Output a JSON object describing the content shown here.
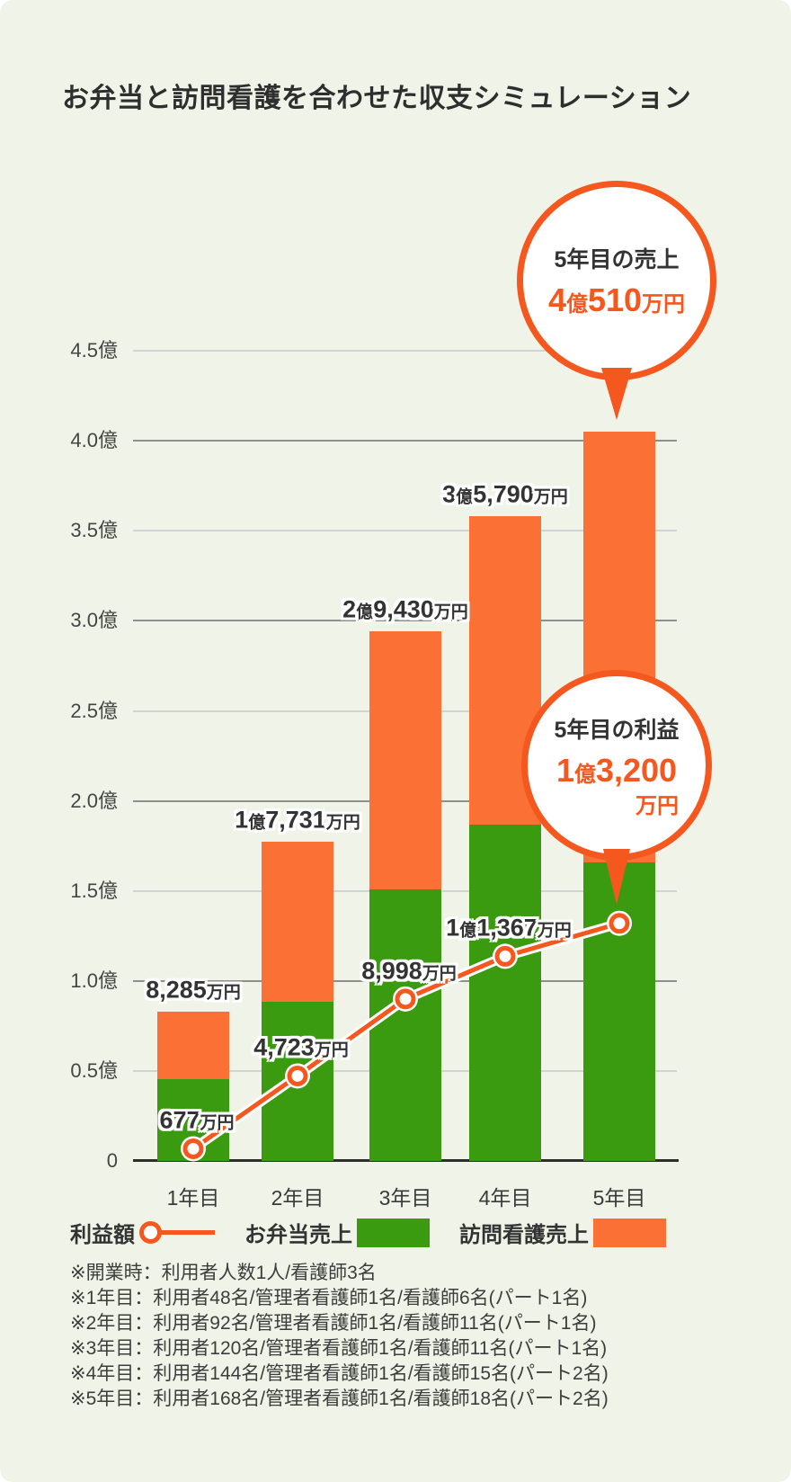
{
  "title": "お弁当と訪問看護を合わせた収支シミュレーション",
  "colors": {
    "background": "#f0f4e8",
    "bento_green": "#3a9b10",
    "nursing_orange": "#fb7034",
    "accent_orange": "#f4581f",
    "text_dark": "#333333"
  },
  "callouts": {
    "sales": {
      "label": "5年目の売上",
      "value": "4億510万円"
    },
    "profit": {
      "label": "5年目の利益",
      "value_line1": "1億3,200",
      "value_line2": "万円"
    }
  },
  "chart_data": {
    "type": "bar",
    "subtype": "stacked-bars-with-line",
    "title": "お弁当と訪問看護を合わせた収支シミュレーション",
    "categories": [
      "1年目",
      "2年目",
      "3年目",
      "4年目",
      "5年目"
    ],
    "series": [
      {
        "name": "お弁当売上",
        "type": "bar",
        "color": "#3a9b10",
        "values_oku": [
          0.455,
          0.885,
          1.51,
          1.87,
          1.66
        ]
      },
      {
        "name": "訪問看護売上",
        "type": "bar",
        "color": "#fb7034",
        "values_oku": [
          0.374,
          0.888,
          1.433,
          1.709,
          2.391
        ]
      },
      {
        "name": "利益額",
        "type": "line",
        "color": "#f4581f",
        "values_oku": [
          0.0677,
          0.4723,
          0.8998,
          1.1367,
          1.32
        ]
      }
    ],
    "bar_totals_oku": [
      0.8285,
      1.7731,
      2.943,
      3.579,
      4.051
    ],
    "bar_total_labels": [
      "8,285万円",
      "1億7,731万円",
      "2億9,430万円",
      "3億5,790万円",
      ""
    ],
    "profit_point_labels": [
      "677万円",
      "4,723万円",
      "8,998万円",
      "1億1,367万円",
      ""
    ],
    "y_axis": {
      "ticks": [
        "4.5億",
        "4.0億",
        "3.5億",
        "3.0億",
        "2.5億",
        "2.0億",
        "1.5億",
        "1.0億",
        "0.5億",
        "0"
      ],
      "min_oku": 0,
      "max_oku": 4.5,
      "gridlines": true
    },
    "legend_position": "bottom"
  },
  "legend": {
    "items": [
      {
        "label": "利益額",
        "marker": "line-dot"
      },
      {
        "label": "お弁当売上",
        "marker": "swatch",
        "color": "#3a9b10"
      },
      {
        "label": "訪問看護売上",
        "marker": "swatch",
        "color": "#fb7034"
      }
    ]
  },
  "footnotes": {
    "lines": [
      "※開業時：利用者人数1人/看護師3名",
      "※1年目：利用者48名/管理者看護師1名/看護師6名(パート1名)",
      "※2年目：利用者92名/管理者看護師1名/看護師11名(パート1名)",
      "※3年目：利用者120名/管理者看護師1名/看護師11名(パート1名)",
      "※4年目：利用者144名/管理者看護師1名/看護師15名(パート2名)",
      "※5年目：利用者168名/管理者看護師1名/看護師18名(パート2名)"
    ]
  }
}
